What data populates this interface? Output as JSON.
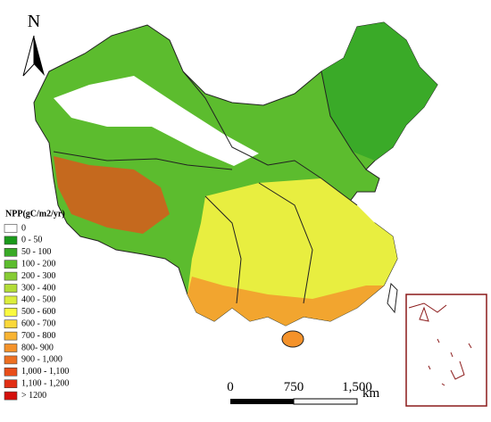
{
  "north_arrow": {
    "label": "N"
  },
  "legend": {
    "title": "NPP(gC/m2/yr)",
    "items": [
      {
        "label": "0",
        "color": "#ffffff"
      },
      {
        "label": "0 - 50",
        "color": "#1a9a1a"
      },
      {
        "label": "50 - 100",
        "color": "#3aaa28"
      },
      {
        "label": "100 - 200",
        "color": "#5cbc2e"
      },
      {
        "label": "200 - 300",
        "color": "#86cc34"
      },
      {
        "label": "300 - 400",
        "color": "#b2dc38"
      },
      {
        "label": "400 - 500",
        "color": "#dcee3c"
      },
      {
        "label": "500 - 600",
        "color": "#fafa40"
      },
      {
        "label": "600 - 700",
        "color": "#fbd83a"
      },
      {
        "label": "700 - 800",
        "color": "#f9b432"
      },
      {
        "label": "800- 900",
        "color": "#f4922a"
      },
      {
        "label": "900 - 1,000",
        "color": "#ee7022"
      },
      {
        "label": "1,000 - 1,100",
        "color": "#e84e1a"
      },
      {
        "label": "1,100 - 1,200",
        "color": "#e22e14"
      },
      {
        "label": "> 1200",
        "color": "#d4100c"
      }
    ]
  },
  "scale_bar": {
    "labels": [
      "0",
      "750",
      "1,500"
    ],
    "unit": "km"
  }
}
